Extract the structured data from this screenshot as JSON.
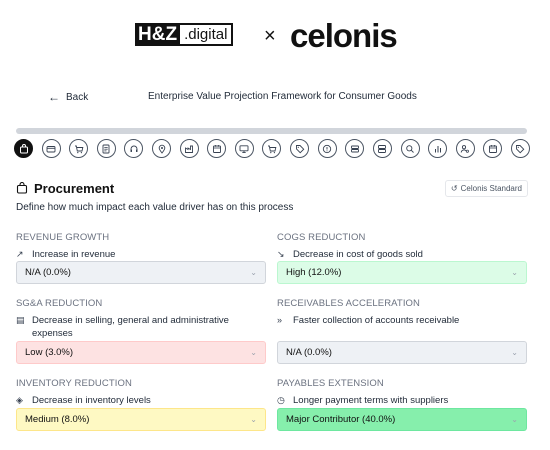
{
  "header": {
    "partner_logo_main": "H&Z",
    "partner_logo_suffix": ".digital",
    "separator": "×",
    "brand": "celonis"
  },
  "nav": {
    "back_label": "Back",
    "page_title": "Enterprise Value Projection Framework for Consumer Goods"
  },
  "progress": {
    "value_percent": 100
  },
  "steps": [
    "shopping-bag",
    "credit-card",
    "cart",
    "document",
    "headset",
    "map-pin",
    "factory",
    "calendar",
    "monitor",
    "cart",
    "tag",
    "alert-circle",
    "layers",
    "server",
    "search",
    "bar-chart",
    "users-cog",
    "calendar",
    "tag"
  ],
  "section": {
    "title": "Procurement",
    "badge": "Celonis Standard",
    "description": "Define how much impact each value driver has on this process"
  },
  "drivers": {
    "revenue_growth": {
      "title": "REVENUE GROWTH",
      "desc": "Increase in revenue",
      "icon": "trend-up-icon",
      "value": "N/A (0.0%)"
    },
    "cogs_reduction": {
      "title": "COGS REDUCTION",
      "desc": "Decrease in cost of goods sold",
      "icon": "trend-down-icon",
      "value": "High (12.0%)"
    },
    "sga_reduction": {
      "title": "SG&A REDUCTION",
      "desc": "Decrease in selling, general and administrative expenses",
      "icon": "receipt-icon",
      "value": "Low (3.0%)"
    },
    "receivables_acceleration": {
      "title": "RECEIVABLES ACCELERATION",
      "desc": "Faster collection of accounts receivable",
      "icon": "fast-forward-icon",
      "value": "N/A (0.0%)"
    },
    "inventory_reduction": {
      "title": "INVENTORY REDUCTION",
      "desc": "Decrease in inventory levels",
      "icon": "package-icon",
      "value": "Medium (8.0%)"
    },
    "payables_extension": {
      "title": "PAYABLES EXTENSION",
      "desc": "Longer payment terms with suppliers",
      "icon": "clock-icon",
      "value": "Major Contributor (40.0%)"
    }
  }
}
